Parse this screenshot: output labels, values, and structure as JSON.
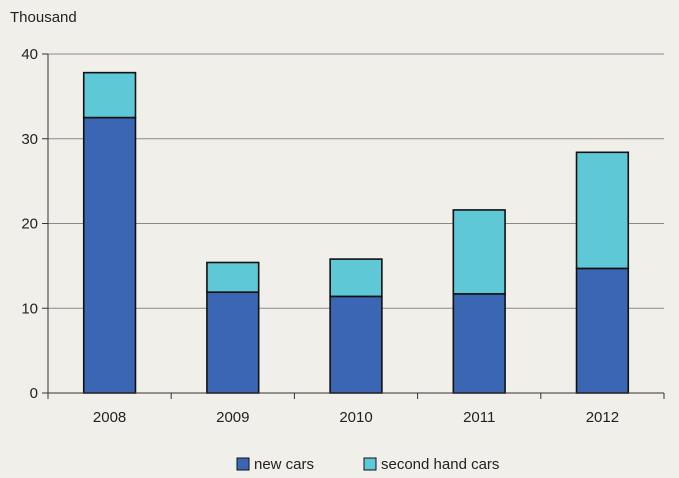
{
  "chart_data": {
    "type": "bar",
    "stacked": true,
    "unit_label": "Thousand",
    "categories": [
      "2008",
      "2009",
      "2010",
      "2011",
      "2012"
    ],
    "series": [
      {
        "name": "new cars",
        "color": "#3a66b3",
        "values": [
          32.5,
          11.9,
          11.4,
          11.7,
          14.7
        ]
      },
      {
        "name": "second hand cars",
        "color": "#5ec8d6",
        "values": [
          5.3,
          3.5,
          4.4,
          9.9,
          13.7
        ]
      }
    ],
    "ylim": [
      0,
      40
    ],
    "yticks": [
      0,
      10,
      20,
      30,
      40
    ],
    "grid": true,
    "legend_position": "bottom"
  }
}
